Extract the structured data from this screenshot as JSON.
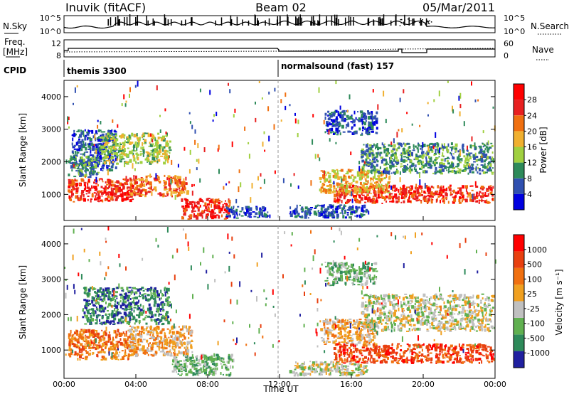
{
  "header": {
    "station": "Inuvik (fitACF)",
    "beam": "Beam 02",
    "date": "05/Mar/2011"
  },
  "noise_panel": {
    "left_label": "N.Sky",
    "right_label": "N.Search",
    "left_ticks": [
      "10^5",
      "10^0"
    ],
    "right_ticks": [
      "10^5",
      "10^0"
    ]
  },
  "freq_panel": {
    "left_label_1": "Freq.",
    "left_label_2": "[MHz]",
    "right_label": "Nave",
    "left_ticks": [
      "12",
      "8"
    ],
    "right_ticks": [
      "60",
      "0"
    ]
  },
  "cpid_panel": {
    "label": "CPID",
    "programs": [
      {
        "name": "themis 3300",
        "start_hour": 0
      },
      {
        "name": "normalsound (fast) 157",
        "start_hour": 12
      }
    ]
  },
  "chart_data": [
    {
      "type": "heatmap",
      "name": "power",
      "ylabel": "Slant Range [km]",
      "xlim": [
        0,
        24
      ],
      "ylim": [
        200,
        4500
      ],
      "yticks": [
        "1000",
        "2000",
        "3000",
        "4000"
      ],
      "colorbar_label": "Power [dB]",
      "colorbar_ticks": [
        "28",
        "24",
        "20",
        "16",
        "12",
        "8",
        "4"
      ],
      "colors": [
        "#0000e0",
        "#3050b0",
        "#2e8a5a",
        "#a0d040",
        "#f0b030",
        "#f07010",
        "#e82020",
        "#ff0000"
      ],
      "blobs": [
        {
          "x": 0.2,
          "x2": 4.0,
          "y": 750,
          "y2": 1500,
          "level": 6
        },
        {
          "x": 3.6,
          "x2": 7.0,
          "y": 900,
          "y2": 1600,
          "level": 5
        },
        {
          "x": 6.5,
          "x2": 9.3,
          "y": 220,
          "y2": 900,
          "level": 6
        },
        {
          "x": 0.4,
          "x2": 3.0,
          "y": 1700,
          "y2": 3000,
          "level": 1
        },
        {
          "x": 2.0,
          "x2": 6.0,
          "y": 1900,
          "y2": 2900,
          "level": 3
        },
        {
          "x": 0.2,
          "x2": 2.0,
          "y": 1500,
          "y2": 2200,
          "level": 2
        },
        {
          "x": 15.0,
          "x2": 24.0,
          "y": 700,
          "y2": 1300,
          "level": 6
        },
        {
          "x": 14.2,
          "x2": 18.2,
          "y": 1000,
          "y2": 1800,
          "level": 4
        },
        {
          "x": 16.5,
          "x2": 24.0,
          "y": 1600,
          "y2": 2600,
          "level": 2
        },
        {
          "x": 14.5,
          "x2": 17.5,
          "y": 2800,
          "y2": 3600,
          "level": 1
        },
        {
          "x": 12.5,
          "x2": 17.0,
          "y": 250,
          "y2": 700,
          "level": 1
        },
        {
          "x": 9.0,
          "x2": 11.5,
          "y": 250,
          "y2": 650,
          "level": 1
        }
      ]
    },
    {
      "type": "heatmap",
      "name": "velocity",
      "xlabel": "Time UT",
      "ylabel": "Slant Range [km]",
      "xlim": [
        0,
        24
      ],
      "ylim": [
        200,
        4500
      ],
      "xticks": [
        "00:00",
        "04:00",
        "08:00",
        "12:00",
        "16:00",
        "20:00",
        "00:00"
      ],
      "yticks": [
        "1000",
        "2000",
        "3000",
        "4000"
      ],
      "colorbar_label": "Velocity [m s⁻¹]",
      "colorbar_ticks": [
        "1000",
        "500",
        "100",
        "25",
        "-25",
        "-100",
        "-500",
        "-1000"
      ],
      "colors": [
        "#2020a0",
        "#2e8a5a",
        "#60b050",
        "#c0c0c0",
        "#f0a020",
        "#f07010",
        "#e84010",
        "#ff0000"
      ],
      "blobs": [
        {
          "x": 0.2,
          "x2": 4.0,
          "y": 700,
          "y2": 1600,
          "level": 5
        },
        {
          "x": 3.5,
          "x2": 7.2,
          "y": 800,
          "y2": 1700,
          "level": 4
        },
        {
          "x": 1.0,
          "x2": 6.0,
          "y": 1700,
          "y2": 2800,
          "level": 1
        },
        {
          "x": 6.0,
          "x2": 9.5,
          "y": 250,
          "y2": 900,
          "level": 2
        },
        {
          "x": 14.2,
          "x2": 17.5,
          "y": 1100,
          "y2": 1900,
          "level": 4
        },
        {
          "x": 15.0,
          "x2": 24.0,
          "y": 600,
          "y2": 1200,
          "level": 6
        },
        {
          "x": 16.5,
          "x2": 24.0,
          "y": 1500,
          "y2": 2600,
          "level": 3
        },
        {
          "x": 12.5,
          "x2": 17.0,
          "y": 250,
          "y2": 700,
          "level": 3
        },
        {
          "x": 14.5,
          "x2": 17.5,
          "y": 2800,
          "y2": 3500,
          "level": 2
        }
      ]
    }
  ]
}
